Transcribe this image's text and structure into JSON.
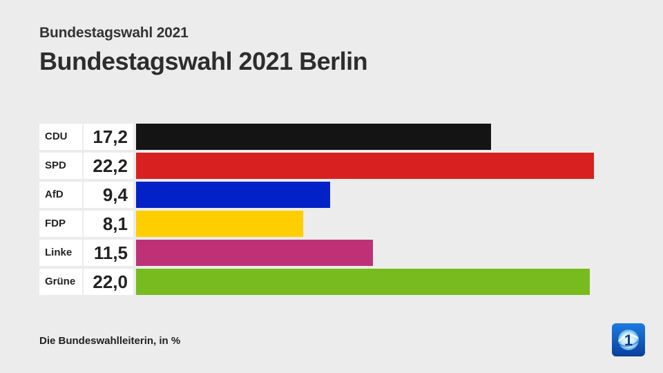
{
  "header": {
    "supertitle": "Bundestagswahl 2021",
    "title": "Bundestagswahl 2021 Berlin"
  },
  "footer": {
    "source": "Die Bundeswahlleiterin, in %"
  },
  "logo": {
    "icon": "ard-tagesschau-logo-icon",
    "text": "1"
  },
  "chart_data": {
    "type": "bar",
    "orientation": "horizontal",
    "title": "Bundestagswahl 2021 Berlin",
    "subtitle": "Bundestagswahl 2021",
    "unit": "%",
    "categories": [
      "CDU",
      "SPD",
      "AfD",
      "FDP",
      "Linke",
      "Grüne"
    ],
    "values": [
      17.2,
      22.2,
      9.4,
      8.1,
      11.5,
      22.0
    ],
    "value_labels": [
      "17,2",
      "22,2",
      "9,4",
      "8,1",
      "11,5",
      "22,0"
    ],
    "colors": [
      "#141414",
      "#d82020",
      "#0222c8",
      "#ffce00",
      "#bf3176",
      "#77bb1e"
    ],
    "xlim": [
      0,
      22.2
    ],
    "grid": false,
    "legend": "none"
  }
}
